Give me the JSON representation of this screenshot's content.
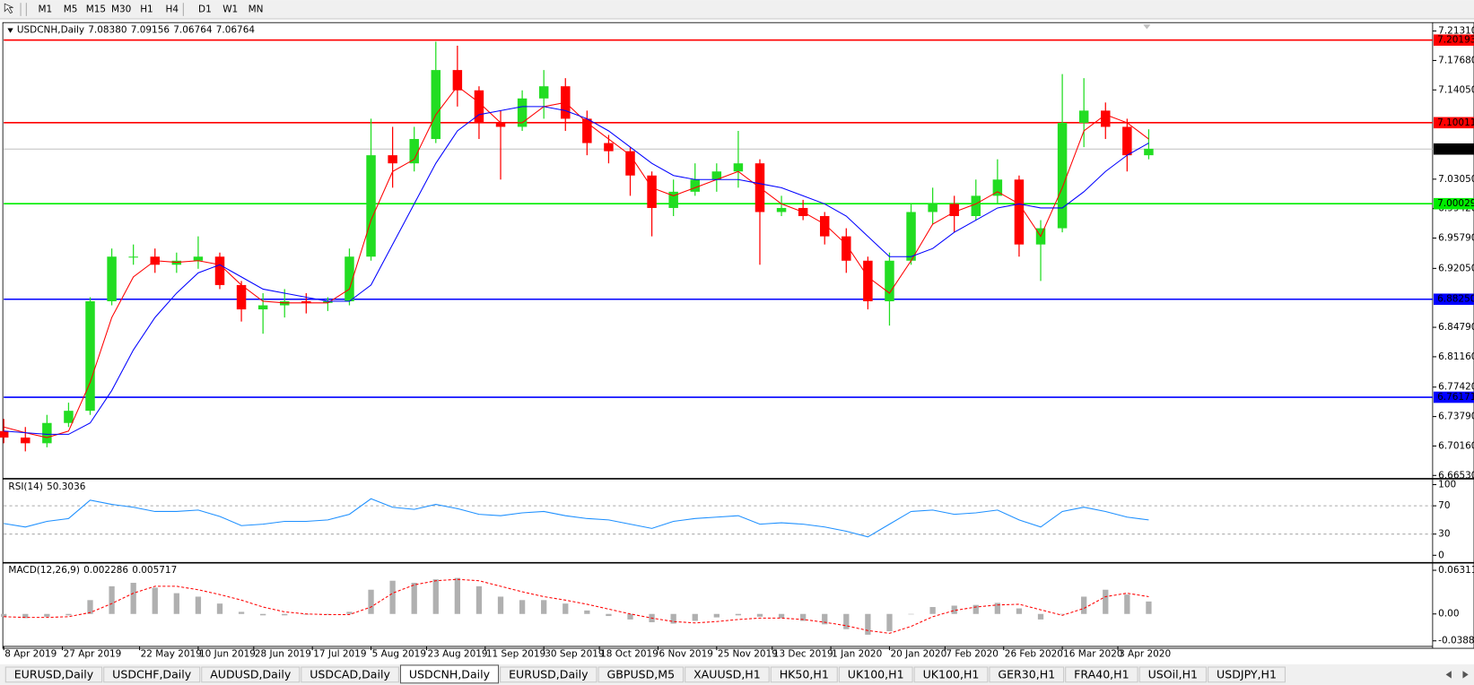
{
  "toolbar": {
    "timeframes": [
      "M1",
      "M5",
      "M15",
      "M30",
      "H1",
      "H4",
      "D1",
      "W1",
      "MN"
    ]
  },
  "chart_data": {
    "type": "candlestick",
    "title": "USDCNH,Daily",
    "quote": [
      {
        "value": 7.0838,
        "label": "7.08380"
      },
      {
        "value": 7.09156,
        "label": "7.09156"
      },
      {
        "value": 7.06764,
        "label": "7.06764"
      },
      {
        "value": 7.06764,
        "label": "7.06764"
      }
    ],
    "up_color": "#22dd22",
    "down_color": "#ff0000",
    "x": [
      "2019-04-08",
      "2019-04-15",
      "2019-04-22",
      "2019-04-29",
      "2019-05-06",
      "2019-05-13",
      "2019-05-20",
      "2019-05-27",
      "2019-06-03",
      "2019-06-10",
      "2019-06-17",
      "2019-06-24",
      "2019-07-01",
      "2019-07-08",
      "2019-07-15",
      "2019-07-22",
      "2019-07-29",
      "2019-08-05",
      "2019-08-12",
      "2019-08-19",
      "2019-08-26",
      "2019-09-02",
      "2019-09-09",
      "2019-09-16",
      "2019-09-23",
      "2019-09-30",
      "2019-10-07",
      "2019-10-14",
      "2019-10-21",
      "2019-10-28",
      "2019-11-04",
      "2019-11-11",
      "2019-11-18",
      "2019-11-25",
      "2019-12-02",
      "2019-12-09",
      "2019-12-16",
      "2019-12-23",
      "2019-12-30",
      "2020-01-06",
      "2020-01-13",
      "2020-01-20",
      "2020-01-27",
      "2020-02-03",
      "2020-02-10",
      "2020-02-17",
      "2020-02-24",
      "2020-03-02",
      "2020-03-09",
      "2020-03-16",
      "2020-03-23",
      "2020-03-30",
      "2020-04-06",
      "2020-04-13"
    ],
    "open": [
      6.72,
      6.712,
      6.705,
      6.73,
      6.745,
      6.88,
      6.935,
      6.935,
      6.925,
      6.93,
      6.935,
      6.9,
      6.87,
      6.875,
      6.88,
      6.878,
      6.88,
      6.935,
      7.06,
      7.05,
      7.08,
      7.165,
      7.14,
      7.1,
      7.095,
      7.13,
      7.145,
      7.105,
      7.075,
      7.065,
      7.035,
      6.995,
      7.015,
      7.03,
      7.04,
      7.05,
      6.99,
      6.995,
      6.985,
      6.96,
      6.93,
      6.88,
      6.93,
      6.99,
      7.0,
      6.985,
      7.01,
      7.03,
      6.95,
      6.97,
      7.1,
      7.115,
      7.095,
      7.06
    ],
    "high": [
      6.735,
      6.725,
      6.74,
      6.755,
      6.885,
      6.945,
      6.95,
      6.945,
      6.94,
      6.96,
      6.94,
      6.905,
      6.89,
      6.895,
      6.89,
      6.885,
      6.945,
      7.105,
      7.095,
      7.095,
      7.2,
      7.195,
      7.145,
      7.115,
      7.14,
      7.165,
      7.155,
      7.115,
      7.085,
      7.07,
      7.04,
      7.03,
      7.05,
      7.05,
      7.09,
      7.055,
      7.01,
      7.005,
      6.99,
      6.97,
      6.935,
      6.94,
      7.0,
      7.02,
      7.01,
      7.03,
      7.055,
      7.035,
      6.98,
      7.16,
      7.155,
      7.125,
      7.105,
      7.092
    ],
    "low": [
      6.705,
      6.695,
      6.7,
      6.725,
      6.74,
      6.875,
      6.925,
      6.915,
      6.915,
      6.92,
      6.895,
      6.855,
      6.84,
      6.86,
      6.865,
      6.868,
      6.875,
      6.93,
      7.02,
      7.04,
      7.075,
      7.12,
      7.08,
      7.03,
      7.09,
      7.105,
      7.09,
      7.06,
      7.05,
      7.01,
      6.96,
      6.985,
      7.01,
      7.015,
      7.02,
      6.925,
      6.985,
      6.98,
      6.95,
      6.915,
      6.87,
      6.85,
      6.925,
      6.975,
      6.965,
      6.98,
      7.0,
      6.935,
      6.905,
      6.965,
      7.07,
      7.08,
      7.04,
      7.055
    ],
    "close": [
      6.712,
      6.705,
      6.73,
      6.745,
      6.88,
      6.935,
      6.935,
      6.925,
      6.93,
      6.935,
      6.9,
      6.87,
      6.875,
      6.88,
      6.878,
      6.88,
      6.935,
      7.06,
      7.05,
      7.08,
      7.165,
      7.14,
      7.1,
      7.095,
      7.13,
      7.145,
      7.105,
      7.075,
      7.065,
      7.035,
      6.995,
      7.015,
      7.03,
      7.04,
      7.05,
      6.99,
      6.995,
      6.985,
      6.96,
      6.93,
      6.88,
      6.93,
      6.99,
      7.0,
      6.985,
      7.01,
      7.03,
      6.95,
      6.97,
      7.1,
      7.115,
      7.095,
      7.06,
      7.068
    ],
    "overlays": [
      {
        "color": "#ff0000",
        "values": [
          6.725,
          6.718,
          6.712,
          6.72,
          6.78,
          6.86,
          6.91,
          6.93,
          6.928,
          6.93,
          6.925,
          6.9,
          6.88,
          6.878,
          6.878,
          6.878,
          6.895,
          6.98,
          7.04,
          7.055,
          7.11,
          7.145,
          7.125,
          7.1,
          7.1,
          7.12,
          7.125,
          7.1,
          7.08,
          7.06,
          7.02,
          7.01,
          7.02,
          7.03,
          7.04,
          7.02,
          7.0,
          6.99,
          6.975,
          6.95,
          6.91,
          6.89,
          6.93,
          6.975,
          6.99,
          7.0,
          7.015,
          7.0,
          6.96,
          7.02,
          7.09,
          7.11,
          7.1,
          7.08
        ]
      },
      {
        "color": "#0000ff",
        "values": [
          6.72,
          6.718,
          6.716,
          6.716,
          6.73,
          6.77,
          6.82,
          6.86,
          6.89,
          6.915,
          6.925,
          6.91,
          6.895,
          6.89,
          6.885,
          6.88,
          6.88,
          6.9,
          6.95,
          7.0,
          7.05,
          7.09,
          7.11,
          7.115,
          7.12,
          7.12,
          7.115,
          7.105,
          7.09,
          7.07,
          7.05,
          7.035,
          7.03,
          7.03,
          7.03,
          7.025,
          7.02,
          7.01,
          7.0,
          6.985,
          6.96,
          6.935,
          6.935,
          6.945,
          6.965,
          6.98,
          6.995,
          7.0,
          6.995,
          6.995,
          7.015,
          7.04,
          7.06,
          7.075
        ]
      }
    ],
    "levels": [
      {
        "value": 7.20193,
        "color": "#ff0000"
      },
      {
        "value": 7.10011,
        "color": "#ff0000"
      },
      {
        "value": 7.00029,
        "color": "#00ee00"
      },
      {
        "value": 6.8825,
        "label": "6.88250",
        "color": "#0000ff"
      },
      {
        "value": 6.76171,
        "color": "#0000ff"
      }
    ],
    "current_price": {
      "value": 7.06764,
      "color": "#c0c0c0"
    },
    "xlim": [
      "2019-04-08",
      "2020-07-14"
    ],
    "xticks": [
      {
        "value": "2019-04-08",
        "label": "8 Apr 2019"
      },
      {
        "value": "2019-04-27",
        "label": "27 Apr 2019"
      },
      {
        "value": "2019-05-22",
        "label": "22 May 2019"
      },
      {
        "value": "2019-06-10",
        "label": "10 Jun 2019"
      },
      {
        "value": "2019-06-28",
        "label": "28 Jun 2019"
      },
      {
        "value": "2019-07-17",
        "label": "17 Jul 2019"
      },
      {
        "value": "2019-08-05",
        "label": "5 Aug 2019"
      },
      {
        "value": "2019-08-23",
        "label": "23 Aug 2019"
      },
      {
        "value": "2019-09-11",
        "label": "11 Sep 2019"
      },
      {
        "value": "2019-09-30",
        "label": "30 Sep 2019"
      },
      {
        "value": "2019-10-18",
        "label": "18 Oct 2019"
      },
      {
        "value": "2019-11-06",
        "label": "6 Nov 2019"
      },
      {
        "value": "2019-11-25",
        "label": "25 Nov 2019"
      },
      {
        "value": "2019-12-13",
        "label": "13 Dec 2019"
      },
      {
        "value": "2020-01-01",
        "label": "1 Jan 2020"
      },
      {
        "value": "2020-01-20",
        "label": "20 Jan 2020"
      },
      {
        "value": "2020-02-07",
        "label": "7 Feb 2020"
      },
      {
        "value": "2020-02-26",
        "label": "26 Feb 2020"
      },
      {
        "value": "2020-03-16",
        "label": "16 Mar 2020"
      },
      {
        "value": "2020-04-03",
        "label": "3 Apr 2020"
      }
    ],
    "ylim": [
      6.663,
      7.22
    ],
    "yticks": [
      {
        "value": 7.2131,
        "label": "7.21310"
      },
      {
        "value": 7.1768,
        "label": "7.17680"
      },
      {
        "value": 7.1405,
        "label": "7.14050"
      },
      {
        "value": 7.0305,
        "label": "7.03050"
      },
      {
        "value": 6.9942,
        "label": "6.99420"
      },
      {
        "value": 6.9579,
        "label": "6.95790"
      },
      {
        "value": 6.9205,
        "label": "6.92050"
      },
      {
        "value": 6.8479,
        "label": "6.84790"
      },
      {
        "value": 6.8116,
        "label": "6.81160"
      },
      {
        "value": 6.7742,
        "label": "6.77420"
      },
      {
        "value": 6.7379,
        "label": "6.73790"
      },
      {
        "value": 6.7016,
        "label": "6.70160"
      },
      {
        "value": 6.6653,
        "label": "6.66530"
      }
    ],
    "panels": [
      {
        "type": "line",
        "title": "RSI(14)",
        "readout": [
          50.3036
        ],
        "color": "#1e90ff",
        "values": [
          45,
          40,
          48,
          52,
          78,
          72,
          68,
          62,
          62,
          64,
          55,
          42,
          44,
          48,
          48,
          50,
          58,
          80,
          68,
          65,
          72,
          66,
          58,
          56,
          60,
          62,
          56,
          52,
          50,
          44,
          38,
          48,
          52,
          54,
          56,
          44,
          46,
          44,
          40,
          34,
          26,
          44,
          62,
          64,
          58,
          60,
          64,
          50,
          40,
          62,
          68,
          62,
          54,
          50
        ],
        "ylim": [
          -8,
          105
        ],
        "yticks": [
          100,
          70,
          30,
          0
        ],
        "levels": [
          70,
          30
        ]
      },
      {
        "type": "macd",
        "title": "MACD(12,26,9)",
        "readout": [
          0.002286,
          0.005717
        ],
        "histogram_color": "#b0b0b0",
        "signal_color": "#ff0000",
        "histogram": [
          -0.004,
          -0.006,
          -0.004,
          -0.002,
          0.02,
          0.04,
          0.045,
          0.038,
          0.03,
          0.025,
          0.015,
          0.003,
          -0.002,
          -0.002,
          -0.001,
          -0.001,
          0.003,
          0.035,
          0.048,
          0.045,
          0.05,
          0.052,
          0.04,
          0.025,
          0.02,
          0.02,
          0.015,
          0.005,
          -0.003,
          -0.008,
          -0.012,
          -0.014,
          -0.01,
          -0.005,
          -0.002,
          -0.004,
          -0.006,
          -0.01,
          -0.015,
          -0.022,
          -0.03,
          -0.025,
          0.0,
          0.01,
          0.012,
          0.013,
          0.016,
          0.008,
          -0.008,
          0.0,
          0.025,
          0.035,
          0.028,
          0.018
        ],
        "signal": [
          -0.004,
          -0.005,
          -0.005,
          -0.004,
          0.002,
          0.015,
          0.03,
          0.04,
          0.04,
          0.035,
          0.028,
          0.02,
          0.01,
          0.003,
          0.0,
          -0.001,
          -0.001,
          0.01,
          0.03,
          0.042,
          0.048,
          0.05,
          0.048,
          0.04,
          0.032,
          0.025,
          0.02,
          0.014,
          0.007,
          0.0,
          -0.006,
          -0.011,
          -0.013,
          -0.011,
          -0.008,
          -0.006,
          -0.006,
          -0.008,
          -0.012,
          -0.017,
          -0.024,
          -0.028,
          -0.018,
          -0.004,
          0.005,
          0.01,
          0.013,
          0.014,
          0.006,
          -0.002,
          0.008,
          0.025,
          0.03,
          0.025
        ],
        "ylim": [
          -0.0456,
          0.0712
        ],
        "yticks": [
          0.063113,
          {
            "value": 0,
            "label": "0.00"
          },
          -0.038872
        ]
      }
    ]
  },
  "tabs": [
    "EURUSD,Daily",
    "USDCHF,Daily",
    "AUDUSD,Daily",
    "USDCAD,Daily",
    "USDCNH,Daily",
    "EURUSD,Daily",
    "GBPUSD,M5",
    "XAUUSD,H1",
    "HK50,H1",
    "UK100,H1",
    "UK100,H1",
    "GER30,H1",
    "FRA40,H1",
    "USOil,H1",
    "USDJPY,H1"
  ],
  "active_tab": 4
}
